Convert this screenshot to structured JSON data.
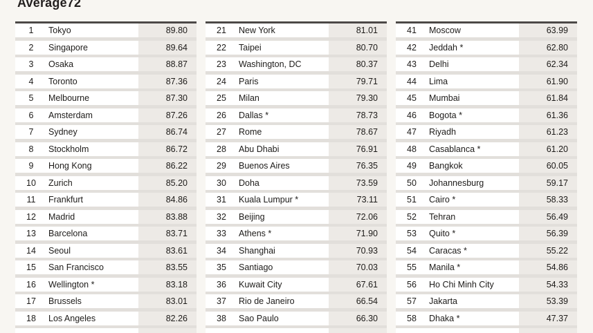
{
  "title": "Average72",
  "table": {
    "columns": [
      {
        "rows": [
          {
            "rank": "1",
            "city": "Tokyo",
            "score": "89.80"
          },
          {
            "rank": "2",
            "city": "Singapore",
            "score": "89.64"
          },
          {
            "rank": "3",
            "city": "Osaka",
            "score": "88.87"
          },
          {
            "rank": "4",
            "city": "Toronto",
            "score": "87.36"
          },
          {
            "rank": "5",
            "city": "Melbourne",
            "score": "87.30"
          },
          {
            "rank": "6",
            "city": "Amsterdam",
            "score": "87.26"
          },
          {
            "rank": "7",
            "city": "Sydney",
            "score": "86.74"
          },
          {
            "rank": "8",
            "city": "Stockholm",
            "score": "86.72"
          },
          {
            "rank": "9",
            "city": "Hong Kong",
            "score": "86.22"
          },
          {
            "rank": "10",
            "city": "Zurich",
            "score": "85.20"
          },
          {
            "rank": "11",
            "city": "Frankfurt",
            "score": "84.86"
          },
          {
            "rank": "12",
            "city": "Madrid",
            "score": "83.88"
          },
          {
            "rank": "13",
            "city": "Barcelona",
            "score": "83.71"
          },
          {
            "rank": "14",
            "city": "Seoul",
            "score": "83.61"
          },
          {
            "rank": "15",
            "city": "San Francisco",
            "score": "83.55"
          },
          {
            "rank": "16",
            "city": "Wellington *",
            "score": "83.18"
          },
          {
            "rank": "17",
            "city": "Brussels",
            "score": "83.01"
          },
          {
            "rank": "18",
            "city": "Los Angeles",
            "score": "82.26"
          }
        ]
      },
      {
        "rows": [
          {
            "rank": "21",
            "city": "New York",
            "score": "81.01"
          },
          {
            "rank": "22",
            "city": "Taipei",
            "score": "80.70"
          },
          {
            "rank": "23",
            "city": "Washington, DC",
            "score": "80.37"
          },
          {
            "rank": "24",
            "city": "Paris",
            "score": "79.71"
          },
          {
            "rank": "25",
            "city": "Milan",
            "score": "79.30"
          },
          {
            "rank": "26",
            "city": "Dallas *",
            "score": "78.73"
          },
          {
            "rank": "27",
            "city": "Rome",
            "score": "78.67"
          },
          {
            "rank": "28",
            "city": "Abu Dhabi",
            "score": "76.91"
          },
          {
            "rank": "29",
            "city": "Buenos Aires",
            "score": "76.35"
          },
          {
            "rank": "30",
            "city": "Doha",
            "score": "73.59"
          },
          {
            "rank": "31",
            "city": "Kuala Lumpur *",
            "score": "73.11"
          },
          {
            "rank": "32",
            "city": "Beijing",
            "score": "72.06"
          },
          {
            "rank": "33",
            "city": "Athens *",
            "score": "71.90"
          },
          {
            "rank": "34",
            "city": "Shanghai",
            "score": "70.93"
          },
          {
            "rank": "35",
            "city": "Santiago",
            "score": "70.03"
          },
          {
            "rank": "36",
            "city": "Kuwait City",
            "score": "67.61"
          },
          {
            "rank": "37",
            "city": "Rio de Janeiro",
            "score": "66.54"
          },
          {
            "rank": "38",
            "city": "Sao Paulo",
            "score": "66.30"
          }
        ]
      },
      {
        "rows": [
          {
            "rank": "41",
            "city": "Moscow",
            "score": "63.99"
          },
          {
            "rank": "42",
            "city": "Jeddah *",
            "score": "62.80"
          },
          {
            "rank": "43",
            "city": "Delhi",
            "score": "62.34"
          },
          {
            "rank": "44",
            "city": "Lima",
            "score": "61.90"
          },
          {
            "rank": "45",
            "city": "Mumbai",
            "score": "61.84"
          },
          {
            "rank": "46",
            "city": "Bogota *",
            "score": "61.36"
          },
          {
            "rank": "47",
            "city": "Riyadh",
            "score": "61.23"
          },
          {
            "rank": "48",
            "city": "Casablanca *",
            "score": "61.20"
          },
          {
            "rank": "49",
            "city": "Bangkok",
            "score": "60.05"
          },
          {
            "rank": "50",
            "city": "Johannesburg",
            "score": "59.17"
          },
          {
            "rank": "51",
            "city": "Cairo *",
            "score": "58.33"
          },
          {
            "rank": "52",
            "city": "Tehran",
            "score": "56.49"
          },
          {
            "rank": "53",
            "city": "Quito *",
            "score": "56.39"
          },
          {
            "rank": "54",
            "city": "Caracas *",
            "score": "55.22"
          },
          {
            "rank": "55",
            "city": "Manila *",
            "score": "54.86"
          },
          {
            "rank": "56",
            "city": "Ho Chi Minh City",
            "score": "54.33"
          },
          {
            "rank": "57",
            "city": "Jakarta",
            "score": "53.39"
          },
          {
            "rank": "58",
            "city": "Dhaka *",
            "score": "47.37"
          }
        ]
      }
    ]
  },
  "colors": {
    "page_background": "#f8f6f2",
    "row_background": "#ffffff",
    "score_cell_background": "#edeae6",
    "separator": "#e2dfdb",
    "table_top_border": "#4c4947",
    "text": "#1d1b19"
  }
}
